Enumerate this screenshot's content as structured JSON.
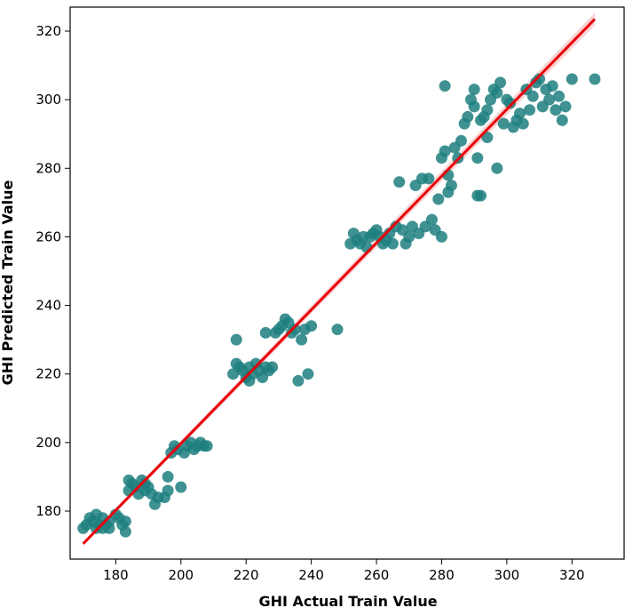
{
  "chart_data": {
    "type": "scatter",
    "title": "",
    "xlabel": "GHI Actual Train Value",
    "ylabel": "GHI Predicted Train Value",
    "xlim": [
      166,
      336
    ],
    "ylim": [
      166,
      327
    ],
    "xticks": [
      180,
      200,
      220,
      240,
      260,
      280,
      300,
      320
    ],
    "yticks": [
      180,
      200,
      220,
      240,
      260,
      280,
      300,
      320
    ],
    "grid": false,
    "colors": {
      "points": "#1f7f7f",
      "fit_line": "#e8000b",
      "band": "#f4a6a6"
    },
    "fit_line": {
      "x": [
        170,
        327
      ],
      "y": [
        170.5,
        323.5
      ]
    },
    "points": [
      [
        170,
        175
      ],
      [
        171,
        176
      ],
      [
        172,
        178
      ],
      [
        173,
        177
      ],
      [
        174,
        175
      ],
      [
        174,
        179
      ],
      [
        175,
        176
      ],
      [
        176,
        175
      ],
      [
        176,
        178
      ],
      [
        177,
        176
      ],
      [
        178,
        177
      ],
      [
        178,
        175
      ],
      [
        180,
        179
      ],
      [
        181,
        178
      ],
      [
        182,
        176
      ],
      [
        183,
        174
      ],
      [
        183,
        177
      ],
      [
        184,
        186
      ],
      [
        184,
        189
      ],
      [
        185,
        188
      ],
      [
        186,
        187
      ],
      [
        187,
        185
      ],
      [
        188,
        189
      ],
      [
        189,
        186
      ],
      [
        189,
        188
      ],
      [
        190,
        187
      ],
      [
        191,
        185
      ],
      [
        192,
        182
      ],
      [
        193,
        184
      ],
      [
        195,
        184
      ],
      [
        196,
        186
      ],
      [
        196,
        190
      ],
      [
        197,
        197
      ],
      [
        198,
        199
      ],
      [
        199,
        198
      ],
      [
        200,
        187
      ],
      [
        201,
        197
      ],
      [
        202,
        199
      ],
      [
        203,
        200
      ],
      [
        204,
        198
      ],
      [
        205,
        199
      ],
      [
        206,
        200
      ],
      [
        207,
        199
      ],
      [
        208,
        199
      ],
      [
        216,
        220
      ],
      [
        217,
        223
      ],
      [
        217,
        230
      ],
      [
        218,
        222
      ],
      [
        219,
        221
      ],
      [
        220,
        219
      ],
      [
        221,
        218
      ],
      [
        221,
        222
      ],
      [
        222,
        220
      ],
      [
        223,
        223
      ],
      [
        224,
        221
      ],
      [
        225,
        219
      ],
      [
        226,
        222
      ],
      [
        226,
        232
      ],
      [
        227,
        221
      ],
      [
        228,
        222
      ],
      [
        229,
        232
      ],
      [
        230,
        233
      ],
      [
        231,
        234
      ],
      [
        232,
        236
      ],
      [
        233,
        235
      ],
      [
        234,
        232
      ],
      [
        235,
        233
      ],
      [
        236,
        218
      ],
      [
        237,
        230
      ],
      [
        238,
        233
      ],
      [
        239,
        220
      ],
      [
        240,
        234
      ],
      [
        248,
        233
      ],
      [
        252,
        258
      ],
      [
        253,
        261
      ],
      [
        254,
        259
      ],
      [
        255,
        258
      ],
      [
        256,
        260
      ],
      [
        257,
        257
      ],
      [
        258,
        260
      ],
      [
        259,
        261
      ],
      [
        260,
        262
      ],
      [
        261,
        260
      ],
      [
        262,
        258
      ],
      [
        263,
        259
      ],
      [
        264,
        261
      ],
      [
        265,
        258
      ],
      [
        266,
        263
      ],
      [
        267,
        276
      ],
      [
        268,
        262
      ],
      [
        269,
        258
      ],
      [
        270,
        260
      ],
      [
        271,
        263
      ],
      [
        272,
        275
      ],
      [
        273,
        261
      ],
      [
        274,
        277
      ],
      [
        275,
        263
      ],
      [
        276,
        277
      ],
      [
        277,
        265
      ],
      [
        278,
        262
      ],
      [
        279,
        271
      ],
      [
        280,
        260
      ],
      [
        280,
        283
      ],
      [
        281,
        285
      ],
      [
        281,
        304
      ],
      [
        282,
        273
      ],
      [
        282,
        278
      ],
      [
        283,
        275
      ],
      [
        284,
        286
      ],
      [
        285,
        283
      ],
      [
        286,
        288
      ],
      [
        287,
        293
      ],
      [
        288,
        295
      ],
      [
        289,
        300
      ],
      [
        290,
        298
      ],
      [
        290,
        303
      ],
      [
        291,
        272
      ],
      [
        291,
        283
      ],
      [
        292,
        294
      ],
      [
        292,
        272
      ],
      [
        293,
        295
      ],
      [
        294,
        297
      ],
      [
        294,
        289
      ],
      [
        295,
        300
      ],
      [
        296,
        303
      ],
      [
        297,
        302
      ],
      [
        297,
        280
      ],
      [
        298,
        305
      ],
      [
        299,
        293
      ],
      [
        300,
        300
      ],
      [
        301,
        299
      ],
      [
        302,
        292
      ],
      [
        303,
        294
      ],
      [
        304,
        296
      ],
      [
        305,
        293
      ],
      [
        306,
        303
      ],
      [
        307,
        297
      ],
      [
        308,
        301
      ],
      [
        309,
        305
      ],
      [
        310,
        306
      ],
      [
        311,
        298
      ],
      [
        312,
        303
      ],
      [
        313,
        300
      ],
      [
        314,
        304
      ],
      [
        315,
        297
      ],
      [
        316,
        301
      ],
      [
        317,
        294
      ],
      [
        318,
        298
      ],
      [
        320,
        306
      ],
      [
        327,
        306
      ]
    ]
  }
}
